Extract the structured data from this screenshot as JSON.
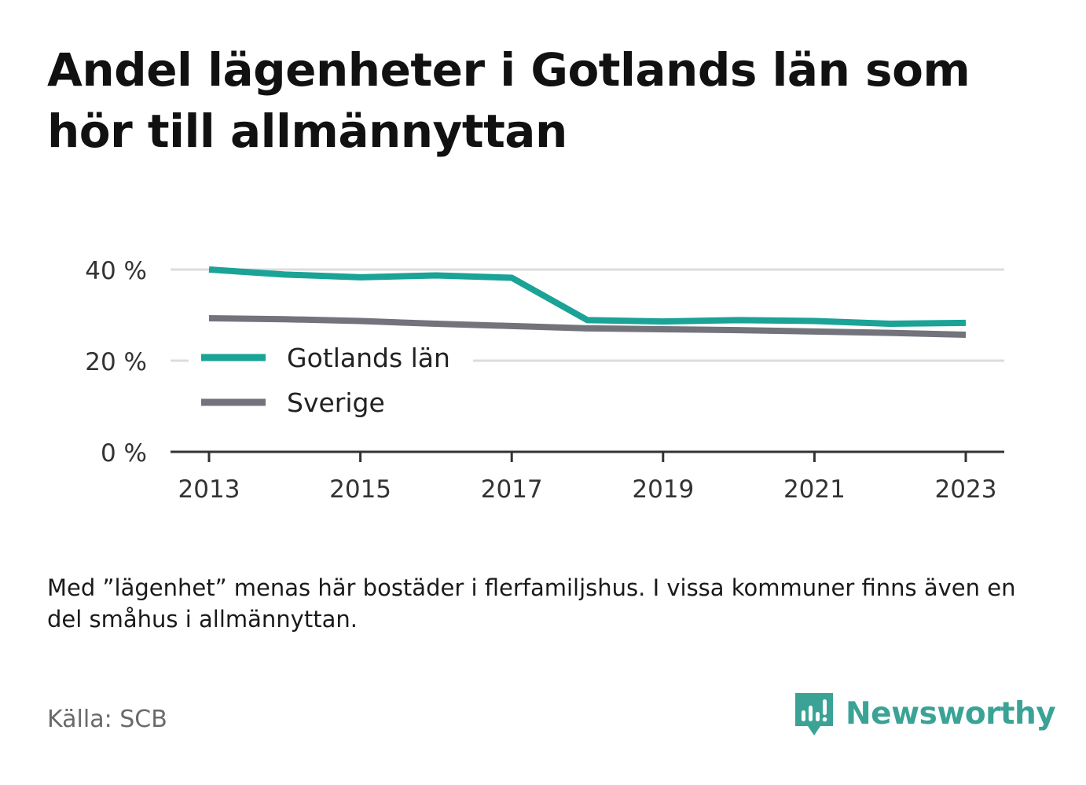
{
  "title": "Andel lägenheter i Gotlands län som hör till allmännyttan",
  "note": "Med ”lägenhet” menas här bostäder i flerfamiljshus. I vissa kommuner finns även en del småhus i allmännyttan.",
  "source": "Källa: SCB",
  "brand": {
    "name": "Newsworthy",
    "color": "#3aa396"
  },
  "chart_data": {
    "type": "line",
    "x": [
      2013,
      2014,
      2015,
      2016,
      2017,
      2018,
      2019,
      2020,
      2021,
      2022,
      2023
    ],
    "x_ticks": [
      "2013",
      "2015",
      "2017",
      "2019",
      "2021",
      "2023"
    ],
    "y_ticks": [
      "0 %",
      "20 %",
      "40 %"
    ],
    "ylim": [
      0,
      40
    ],
    "grid": true,
    "legend_position": "center-left",
    "series": [
      {
        "name": "Gotlands län",
        "color": "#1aa396",
        "values": [
          40.0,
          38.9,
          38.3,
          38.7,
          38.2,
          28.9,
          28.6,
          28.9,
          28.7,
          28.1,
          28.3
        ]
      },
      {
        "name": "Sverige",
        "color": "#73737c",
        "values": [
          29.3,
          29.1,
          28.7,
          28.1,
          27.6,
          27.1,
          26.9,
          26.7,
          26.4,
          26.1,
          25.7
        ]
      }
    ]
  }
}
